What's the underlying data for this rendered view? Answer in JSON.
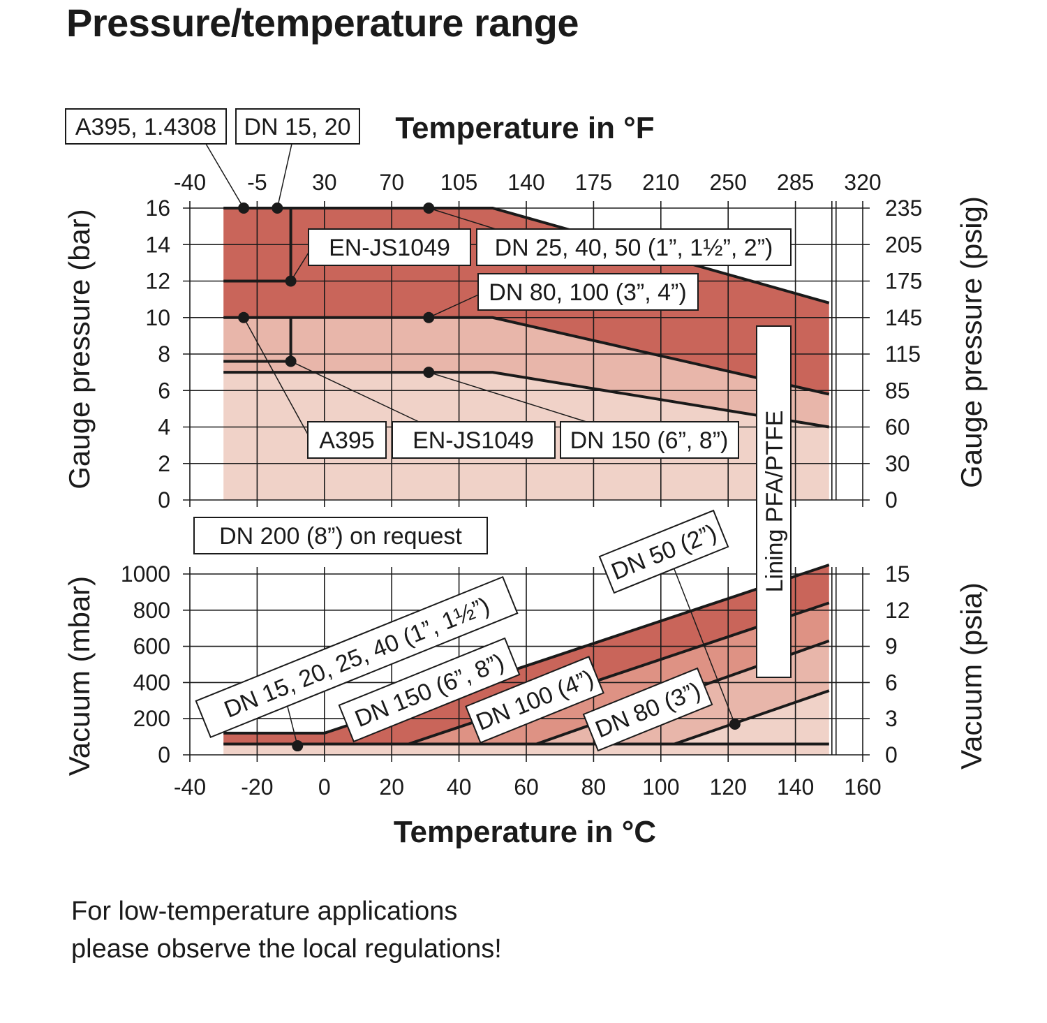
{
  "title": "Pressure/temperature range",
  "note": {
    "line1": "For low-temperature applications",
    "line2": "please observe the local regulations!"
  },
  "colors": {
    "dark": "#c9655a",
    "medium": "#de9284",
    "light": "#e8b6aa",
    "lightest": "#f0d2c8",
    "line": "#1a1a1a",
    "grid": "#1a1a1a"
  },
  "chart_data": [
    {
      "id": "gauge",
      "type": "area",
      "xlabel_bottom": "Temperature in °C",
      "xlabel_top": "Temperature in °F",
      "ylabel_left": "Gauge pressure (bar)",
      "ylabel_right": "Gauge pressure (psig)",
      "xlim": [
        -40,
        160
      ],
      "ylim": [
        0,
        16
      ],
      "x_ticks": [
        -40,
        -20,
        0,
        20,
        40,
        60,
        80,
        100,
        120,
        140,
        160
      ],
      "top_ticks": [
        "-40",
        "-5",
        "30",
        "70",
        "105",
        "140",
        "175",
        "210",
        "250",
        "285",
        "320"
      ],
      "y_ticks": [
        0,
        2,
        4,
        6,
        8,
        10,
        12,
        14,
        16
      ],
      "right_ticks": [
        "0",
        "30",
        "60",
        "85",
        "115",
        "145",
        "175",
        "205",
        "235"
      ],
      "series": [
        {
          "name": "DN 25, 40, 50 (1”, 1½”, 2”)",
          "x": [
            -30,
            50,
            150
          ],
          "y": [
            16,
            16,
            10.8
          ]
        },
        {
          "name": "DN 80, 100 (3”, 4”)",
          "x": [
            -30,
            50,
            150
          ],
          "y": [
            10,
            10,
            5.8
          ]
        },
        {
          "name": "DN 150 (6”, 8”)",
          "x": [
            -30,
            50,
            150
          ],
          "y": [
            7,
            7,
            4
          ]
        },
        {
          "name": "EN-JS1049 (DN 15, 20)",
          "x": [
            -30,
            -10,
            -10
          ],
          "y": [
            12,
            12,
            16
          ]
        },
        {
          "name": "EN-JS1049",
          "x": [
            -30,
            -10,
            -10
          ],
          "y": [
            7.6,
            7.6,
            10
          ]
        }
      ],
      "markers": [
        {
          "x": -24,
          "y": 16
        },
        {
          "x": -14,
          "y": 16
        },
        {
          "x": 31,
          "y": 16
        },
        {
          "x": -10,
          "y": 12
        },
        {
          "x": -24,
          "y": 10
        },
        {
          "x": 31,
          "y": 10
        },
        {
          "x": -10,
          "y": 7.6
        },
        {
          "x": 31,
          "y": 7
        }
      ],
      "annotations": [
        "A395, 1.4308",
        "DN 15, 20",
        "EN-JS1049",
        "DN 25, 40, 50 (1”, 1½”, 2”)",
        "DN 80, 100 (3”, 4”)",
        "A395",
        "EN-JS1049",
        "DN 150 (6”, 8”)"
      ]
    },
    {
      "id": "vacuum",
      "type": "area",
      "xlabel": "Temperature in °C",
      "ylabel_left": "Vacuum (mbar)",
      "ylabel_right": "Vacuum (psia)",
      "xlim": [
        -40,
        160
      ],
      "ylim": [
        0,
        1000
      ],
      "x_ticks": [
        -40,
        -20,
        0,
        20,
        40,
        60,
        80,
        100,
        120,
        140,
        160
      ],
      "y_ticks": [
        0,
        200,
        400,
        600,
        800,
        1000
      ],
      "right_ticks": [
        "0",
        "3",
        "6",
        "9",
        "12",
        "15"
      ],
      "series": [
        {
          "name": "DN 15, 20, 25, 40 (1”, 1½”)",
          "x": [
            -30,
            150
          ],
          "y": [
            60,
            60
          ]
        },
        {
          "name": "DN 150 (6”, 8”)",
          "x": [
            -30,
            0,
            150
          ],
          "y": [
            120,
            120,
            1050
          ]
        },
        {
          "name": "DN 100 (4”)",
          "x": [
            25,
            150
          ],
          "y": [
            60,
            840
          ]
        },
        {
          "name": "DN 80 (3”)",
          "x": [
            63,
            150
          ],
          "y": [
            60,
            630
          ]
        },
        {
          "name": "DN 50 (2”)",
          "x": [
            104,
            150
          ],
          "y": [
            60,
            355
          ]
        }
      ],
      "markers": [
        {
          "x": -8,
          "y": 50
        },
        {
          "x": 122,
          "y": 170
        }
      ],
      "annotations": [
        "DN 15, 20, 25, 40 (1”, 1½”)",
        "DN 150 (6”, 8”)",
        "DN 100 (4”)",
        "DN 80 (3”)",
        "DN 50 (2”)"
      ]
    }
  ],
  "labels": {
    "a395_14308": "A395, 1.4308",
    "dn15_20": "DN 15, 20",
    "en_js_top": "EN-JS1049",
    "dn25_40_50": "DN 25, 40, 50 (1”, 1½”, 2”)",
    "dn80_100": "DN 80, 100 (3”, 4”)",
    "a395": "A395",
    "en_js_bottom": "EN-JS1049",
    "dn150_gauge": "DN 150 (6”, 8”)",
    "dn200": "DN 200 (8”) on request",
    "lining": "Lining PFA/PTFE",
    "v_dn15": "DN 15, 20, 25, 40 (1”, 1½”)",
    "v_dn150": "DN 150 (6”, 8”)",
    "v_dn100": "DN 100 (4”)",
    "v_dn80": "DN 80 (3”)",
    "v_dn50": "DN 50 (2”)"
  }
}
